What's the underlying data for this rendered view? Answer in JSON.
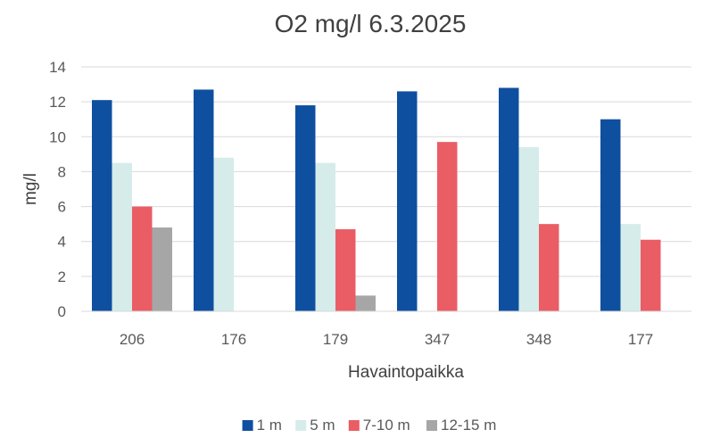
{
  "chart_data": {
    "type": "bar",
    "title": "O2 mg/l 6.3.2025",
    "xlabel": "Havaintopaikka",
    "ylabel": "mg/l",
    "ylim": [
      0,
      14
    ],
    "yticks": [
      0,
      2,
      4,
      6,
      8,
      10,
      12,
      14
    ],
    "grid": true,
    "legend_position": "bottom",
    "categories": [
      "206",
      "176",
      "179",
      "347",
      "348",
      "177"
    ],
    "series": [
      {
        "name": "1 m",
        "color": "#0f4fa0",
        "values": [
          12.1,
          12.7,
          11.8,
          12.6,
          12.8,
          11.0
        ]
      },
      {
        "name": "5 m",
        "color": "#d5ecea",
        "values": [
          8.5,
          8.8,
          8.5,
          null,
          9.4,
          5.0
        ]
      },
      {
        "name": "7-10 m",
        "color": "#ea5d64",
        "values": [
          6.0,
          null,
          4.7,
          9.7,
          5.0,
          4.1
        ]
      },
      {
        "name": "12-15 m",
        "color": "#a6a6a6",
        "values": [
          4.8,
          null,
          0.9,
          null,
          null,
          null
        ]
      }
    ]
  }
}
